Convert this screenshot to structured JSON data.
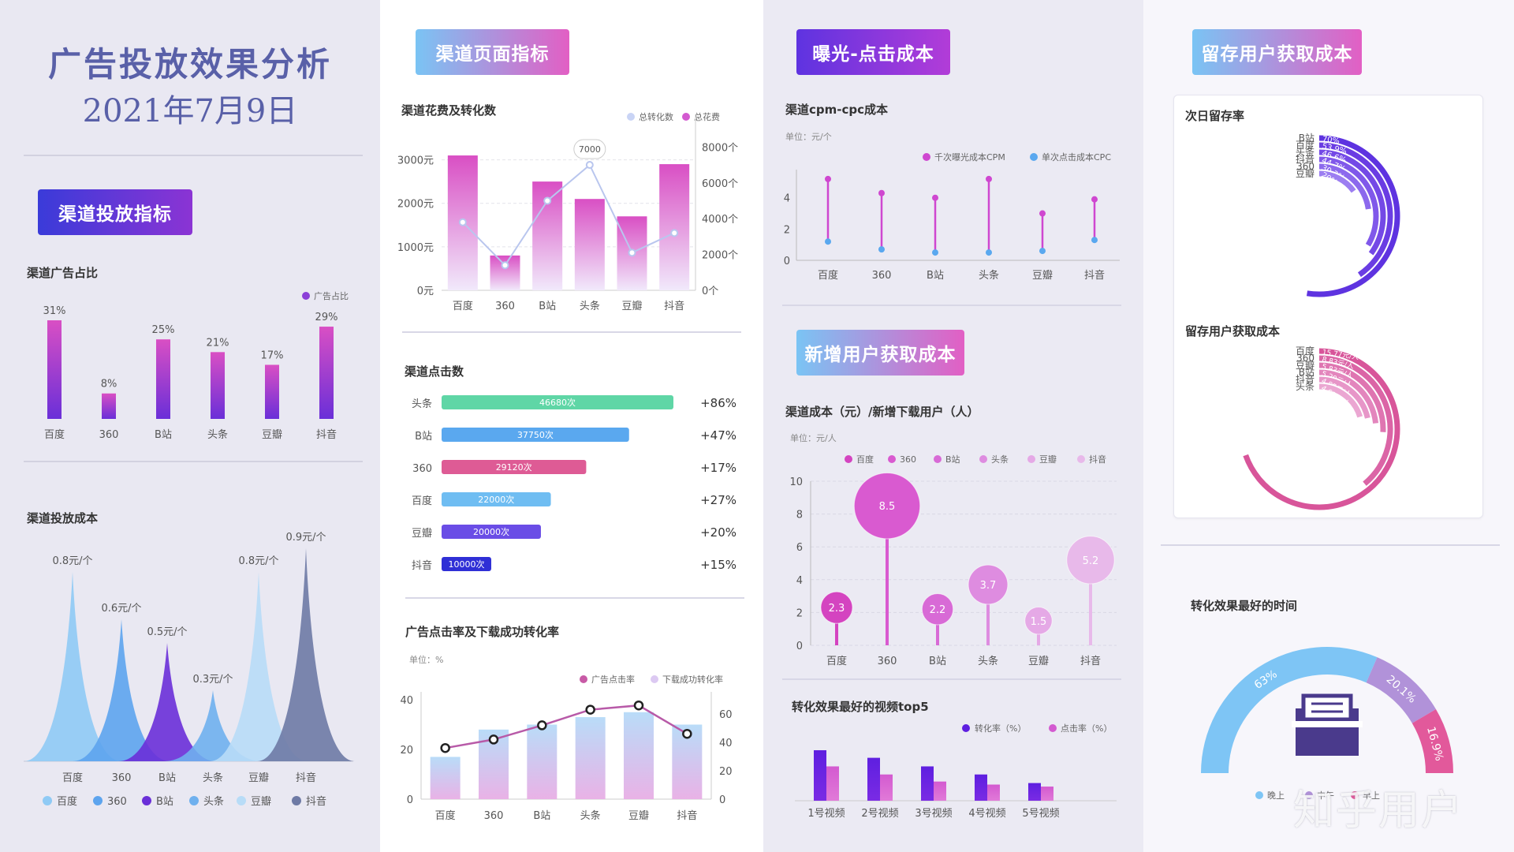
{
  "page": {
    "title": "广告投放效果分析",
    "date": "2021年7月9日",
    "watermark": "知乎用户"
  },
  "sections": {
    "s1": "渠道投放指标",
    "s2": "渠道页面指标",
    "s3": "曝光-点击成本",
    "s4": "新增用户获取成本",
    "s5": "留存用户获取成本"
  },
  "colors": {
    "purple": "#8b3fd8",
    "pink": "#d94fc4",
    "blue": "#5aa8ef",
    "lightblue": "#8cc9f4",
    "green": "#5fd6a6",
    "rose": "#de5b95",
    "violet": "#5e33e0",
    "indigo": "#4a3a8c"
  },
  "chart_data": [
    {
      "id": "ad_share",
      "type": "bar",
      "title": "渠道广告占比",
      "legend": [
        "广告占比"
      ],
      "categories": [
        "百度",
        "360",
        "B站",
        "头条",
        "豆瓣",
        "抖音"
      ],
      "values": [
        31,
        8,
        25,
        21,
        17,
        29
      ],
      "labels": [
        "31%",
        "8%",
        "25%",
        "21%",
        "17%",
        "29%"
      ]
    },
    {
      "id": "cost",
      "type": "area",
      "title": "渠道投放成本",
      "categories": [
        "百度",
        "360",
        "B站",
        "头条",
        "豆瓣",
        "抖音"
      ],
      "values": [
        0.8,
        0.6,
        0.5,
        0.3,
        0.8,
        0.9
      ],
      "labels": [
        "0.8元/个",
        "0.6元/个",
        "0.5元/个",
        "0.3元/个",
        "0.8元/个",
        "0.9元/个"
      ],
      "legend": [
        "百度",
        "360",
        "B站",
        "头条",
        "豆瓣",
        "抖音"
      ],
      "colors": [
        "#8fcaf5",
        "#5da4ee",
        "#6a2fd8",
        "#6fb0ee",
        "#b8dcf7",
        "#6e7aa5"
      ]
    },
    {
      "id": "spend_conv",
      "type": "bar",
      "title": "渠道花费及转化数",
      "legend": [
        "总转化数",
        "总花费"
      ],
      "categories": [
        "百度",
        "360",
        "B站",
        "头条",
        "豆瓣",
        "抖音"
      ],
      "series": [
        {
          "name": "总花费",
          "values": [
            3100,
            800,
            2500,
            2100,
            1700,
            2900
          ]
        },
        {
          "name": "总转化数",
          "values": [
            3800,
            1400,
            5000,
            7000,
            2100,
            3200
          ]
        }
      ],
      "left_ticks": [
        "0元",
        "1000元",
        "2000元",
        "3000元"
      ],
      "right_ticks": [
        "0个",
        "2000个",
        "4000个",
        "6000个",
        "8000个"
      ],
      "ylim_left": [
        0,
        3500
      ],
      "ylim_right": [
        0,
        8500
      ],
      "callout": "7000"
    },
    {
      "id": "clicks",
      "type": "bar",
      "title": "渠道点击数",
      "categories": [
        "头条",
        "B站",
        "360",
        "百度",
        "豆瓣",
        "抖音"
      ],
      "values": [
        46680,
        37750,
        29120,
        22000,
        20000,
        10000
      ],
      "labels": [
        "46680次",
        "37750次",
        "29120次",
        "22000次",
        "20000次",
        "10000次"
      ],
      "growth": [
        "+86%",
        "+47%",
        "+17%",
        "+27%",
        "+20%",
        "+15%"
      ],
      "colors": [
        "#5fd6a6",
        "#5aa8ef",
        "#de5b95",
        "#6fbdf2",
        "#6a4de6",
        "#2f2fd6"
      ]
    },
    {
      "id": "ctr",
      "type": "bar",
      "title": "广告点击率及下载成功转化率",
      "unit": "单位：%",
      "legend": [
        "广告点击率",
        "下载成功转化率"
      ],
      "categories": [
        "百度",
        "360",
        "B站",
        "头条",
        "豆瓣",
        "抖音"
      ],
      "series": [
        {
          "name": "下载成功转化率",
          "values": [
            17,
            28,
            30,
            33,
            35,
            30
          ]
        },
        {
          "name": "广告点击率",
          "values": [
            36,
            42,
            52,
            63,
            66,
            46
          ]
        }
      ],
      "left_ticks": [
        "0",
        "20",
        "40"
      ],
      "right_ticks": [
        "0",
        "20",
        "40",
        "60"
      ],
      "ylim_left": [
        0,
        40
      ],
      "ylim_right": [
        0,
        70
      ]
    },
    {
      "id": "cpm_cpc",
      "type": "scatter",
      "title": "渠道cpm-cpc成本",
      "unit": "单位：元/个",
      "legend": [
        "千次曝光成本CPM",
        "单次点击成本CPC"
      ],
      "categories": [
        "百度",
        "360",
        "B站",
        "头条",
        "豆瓣",
        "抖音"
      ],
      "series": [
        {
          "name": "千次曝光成本CPM",
          "values": [
            5.2,
            4.3,
            4.0,
            5.2,
            3.0,
            3.9
          ]
        },
        {
          "name": "单次点击成本CPC",
          "values": [
            1.2,
            0.7,
            0.5,
            0.5,
            0.6,
            1.3
          ]
        }
      ],
      "ticks": [
        "0",
        "2",
        "4"
      ],
      "ylim": [
        0,
        5.8
      ]
    },
    {
      "id": "new_user_cost",
      "type": "scatter",
      "title": "渠道成本（元）/新增下载用户（人）",
      "unit": "单位：元/人",
      "legend": [
        "百度",
        "360",
        "B站",
        "头条",
        "豆瓣",
        "抖音"
      ],
      "categories": [
        "百度",
        "360",
        "B站",
        "头条",
        "豆瓣",
        "抖音"
      ],
      "values": [
        2.3,
        8.5,
        2.2,
        3.7,
        1.5,
        5.2
      ],
      "labels": [
        "2.3",
        "8.5",
        "2.2",
        "3.7",
        "1.5",
        "5.2"
      ],
      "ticks": [
        "0",
        "2",
        "4",
        "6",
        "8",
        "10"
      ],
      "ylim": [
        0,
        10
      ],
      "colors": [
        "#d444c0",
        "#d95ad0",
        "#d86ad6",
        "#de8ce0",
        "#e5a9e6",
        "#e8b9ea"
      ]
    },
    {
      "id": "top5",
      "type": "bar",
      "title": "转化效果最好的视频top5",
      "legend": [
        "转化率（%）",
        "点击率（%）"
      ],
      "categories": [
        "1号视频",
        "2号视频",
        "3号视频",
        "4号视频",
        "5号视频"
      ],
      "series": [
        {
          "name": "转化率（%）",
          "values": [
            10,
            8.5,
            6.8,
            5.2,
            3.5
          ]
        },
        {
          "name": "点击率（%）",
          "values": [
            6.8,
            5.2,
            3.8,
            3.2,
            2.8
          ]
        }
      ],
      "ylim": [
        0,
        11
      ]
    },
    {
      "id": "retention",
      "type": "pie",
      "title": "次日留存率",
      "categories": [
        "B站",
        "百度",
        "头条",
        "抖音",
        "360",
        "豆瓣"
      ],
      "values": [
        70,
        53.9,
        46.6,
        44.7,
        30.3,
        20
      ],
      "labels": [
        "70%",
        "53.9%",
        "46.6%",
        "44.7%",
        "30.3%",
        "20%"
      ],
      "colors": [
        "#5e33e0",
        "#6a3de3",
        "#7449e6",
        "#8058ea",
        "#8c69ed",
        "#9c7ef1"
      ]
    },
    {
      "id": "retention_cost",
      "type": "pie",
      "title": "留存用户获取成本",
      "categories": [
        "百度",
        "360",
        "豆瓣",
        "B站",
        "抖音",
        "头条"
      ],
      "values": [
        15.77,
        8.83,
        5.83,
        5.29,
        4.85,
        4.61
      ],
      "labels": [
        "15.77元/人",
        "8.83元/人",
        "5.83元/人",
        "5.29元/人",
        "4.85元/人",
        "4.61元/人"
      ],
      "colors": [
        "#d8559a",
        "#db65a6",
        "#df75b1",
        "#e386bd",
        "#e796c8",
        "#eba7d2"
      ]
    },
    {
      "id": "best_time",
      "type": "pie",
      "title": "转化效果最好的时间",
      "categories": [
        "晚上",
        "中午",
        "早上"
      ],
      "values": [
        63,
        20.1,
        16.9
      ],
      "labels": [
        "63%",
        "20.1%",
        "16.9%"
      ],
      "colors": [
        "#7ec5f5",
        "#b192d9",
        "#e2599b"
      ]
    }
  ]
}
